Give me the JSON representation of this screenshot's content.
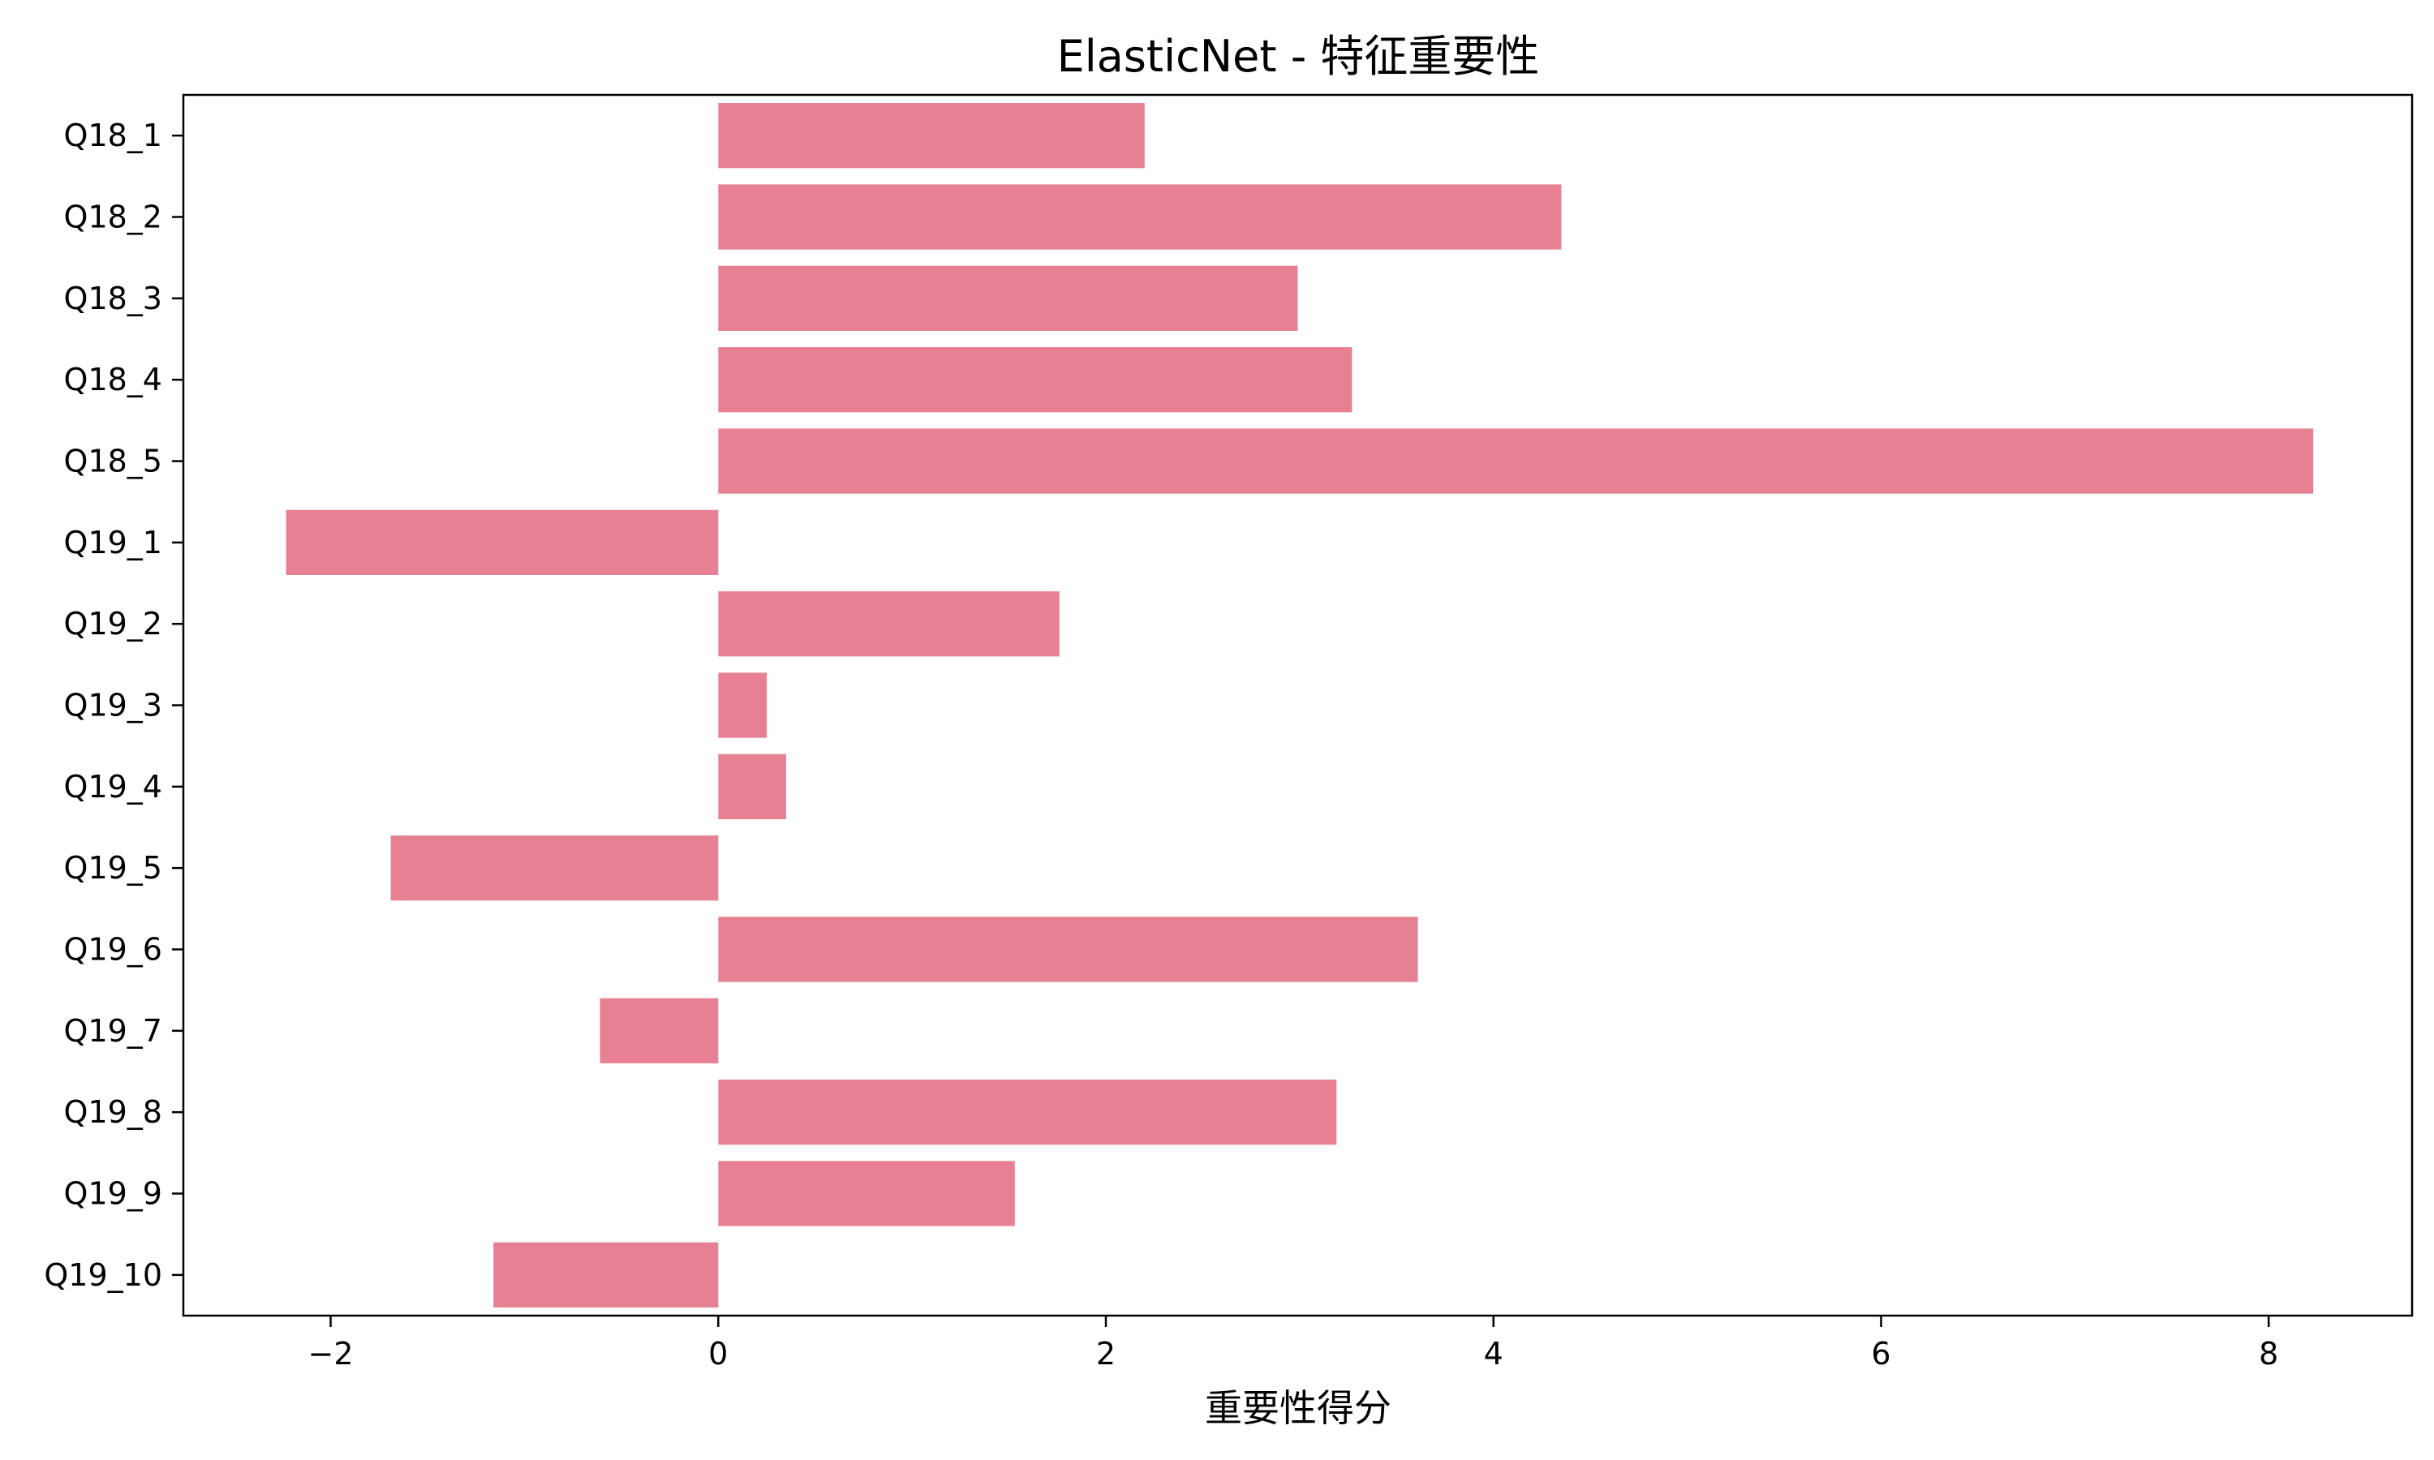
{
  "chart_data": {
    "type": "bar",
    "orientation": "horizontal",
    "title": "ElasticNet - 特征重要性",
    "xlabel": "重要性得分",
    "ylabel": "",
    "xlim": [
      -2.76,
      8.74
    ],
    "xticks": [
      -2,
      0,
      2,
      4,
      6,
      8
    ],
    "xtick_labels": [
      "−2",
      "0",
      "2",
      "4",
      "6",
      "8"
    ],
    "grid": false,
    "bar_color": "#e78093",
    "categories": [
      "Q18_1",
      "Q18_2",
      "Q18_3",
      "Q18_4",
      "Q18_5",
      "Q19_1",
      "Q19_2",
      "Q19_3",
      "Q19_4",
      "Q19_5",
      "Q19_6",
      "Q19_7",
      "Q19_8",
      "Q19_9",
      "Q19_10"
    ],
    "values": [
      2.2,
      4.35,
      2.99,
      3.27,
      8.23,
      -2.23,
      1.76,
      0.25,
      0.35,
      -1.69,
      3.61,
      -0.61,
      3.19,
      1.53,
      -1.16
    ]
  }
}
